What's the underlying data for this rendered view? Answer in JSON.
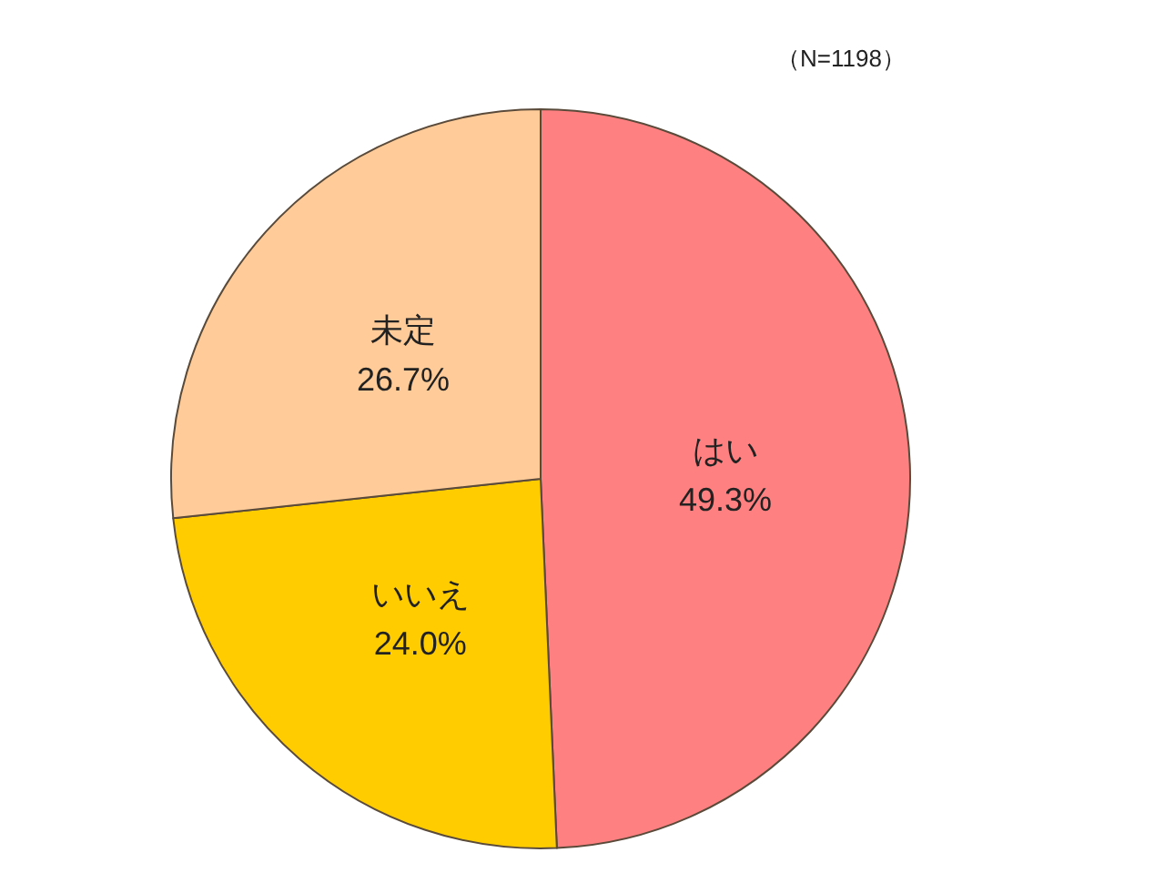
{
  "chart_data": {
    "type": "pie",
    "categories": [
      "はい",
      "いいえ",
      "未定"
    ],
    "values": [
      49.3,
      24.0,
      26.7
    ],
    "value_labels": [
      "49.3%",
      "24.0%",
      "26.7%"
    ],
    "colors": [
      "#ff8080",
      "#ffcc00",
      "#ffcc99"
    ],
    "annotations": [
      "（N=1198）"
    ]
  }
}
